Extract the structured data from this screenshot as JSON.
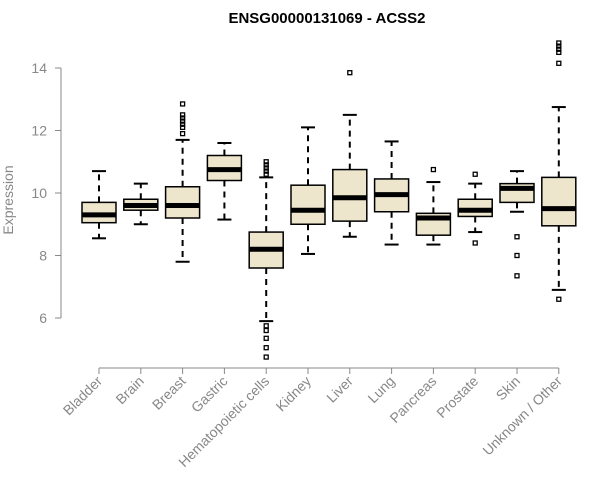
{
  "chart_data": {
    "type": "boxplot",
    "title": "ENSG00000131069 - ACSS2",
    "ylabel": "Expression",
    "xlabel": "",
    "ylim": [
      4.6,
      14.8
    ],
    "yticks": [
      6,
      8,
      10,
      12,
      14
    ],
    "box_fill": "#ede6cc",
    "categories": [
      "Bladder",
      "Brain",
      "Breast",
      "Gastric",
      "Hematopoietic cells",
      "Kidney",
      "Liver",
      "Lung",
      "Pancreas",
      "Prostate",
      "Skin",
      "Unknown / Other"
    ],
    "boxes": [
      {
        "whisker_low": 8.55,
        "q1": 9.05,
        "median": 9.3,
        "q3": 9.7,
        "whisker_high": 10.7,
        "outliers": []
      },
      {
        "whisker_low": 9.0,
        "q1": 9.45,
        "median": 9.6,
        "q3": 9.8,
        "whisker_high": 10.3,
        "outliers": []
      },
      {
        "whisker_low": 7.8,
        "q1": 9.2,
        "median": 9.6,
        "q3": 10.2,
        "whisker_high": 11.7,
        "outliers": [
          11.9,
          12.1,
          12.2,
          12.3,
          12.4,
          12.5,
          12.85
        ]
      },
      {
        "whisker_low": 9.15,
        "q1": 10.4,
        "median": 10.75,
        "q3": 11.2,
        "whisker_high": 11.6,
        "outliers": []
      },
      {
        "whisker_low": 5.9,
        "q1": 7.6,
        "median": 8.2,
        "q3": 8.75,
        "whisker_high": 10.5,
        "outliers": [
          4.75,
          5.05,
          5.35,
          5.6,
          5.75,
          10.6,
          10.7,
          10.8,
          10.9,
          11.0
        ]
      },
      {
        "whisker_low": 8.05,
        "q1": 9.0,
        "median": 9.45,
        "q3": 10.25,
        "whisker_high": 12.1,
        "outliers": []
      },
      {
        "whisker_low": 8.6,
        "q1": 9.1,
        "median": 9.85,
        "q3": 10.75,
        "whisker_high": 12.5,
        "outliers": [
          13.85
        ]
      },
      {
        "whisker_low": 8.35,
        "q1": 9.4,
        "median": 9.95,
        "q3": 10.45,
        "whisker_high": 11.65,
        "outliers": []
      },
      {
        "whisker_low": 8.35,
        "q1": 8.65,
        "median": 9.2,
        "q3": 9.35,
        "whisker_high": 10.35,
        "outliers": [
          10.75
        ]
      },
      {
        "whisker_low": 8.75,
        "q1": 9.25,
        "median": 9.45,
        "q3": 9.8,
        "whisker_high": 10.3,
        "outliers": [
          8.4,
          10.6
        ]
      },
      {
        "whisker_low": 9.4,
        "q1": 9.7,
        "median": 10.15,
        "q3": 10.3,
        "whisker_high": 10.7,
        "outliers": [
          7.35,
          8.0,
          8.6
        ]
      },
      {
        "whisker_low": 6.9,
        "q1": 8.95,
        "median": 9.5,
        "q3": 10.5,
        "whisker_high": 12.75,
        "outliers": [
          6.6,
          14.15,
          14.5,
          14.6,
          14.7,
          14.8
        ]
      }
    ]
  }
}
